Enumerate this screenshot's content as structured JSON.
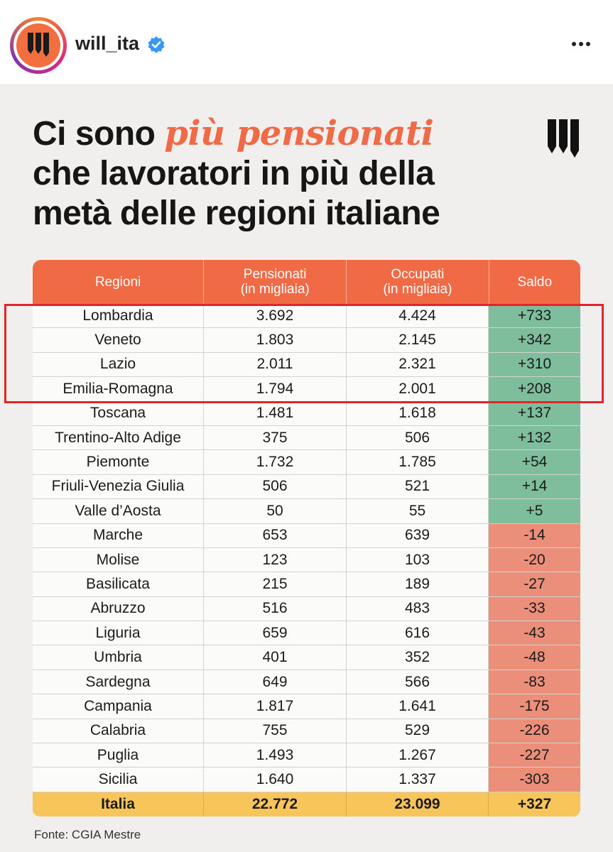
{
  "header": {
    "username": "will_ita",
    "verified_icon": "verified-badge-icon",
    "more_icon": "more-horizontal-icon"
  },
  "title": {
    "part1": "Ci sono ",
    "accent": "più pensionati",
    "part2": "che lavoratori in più della",
    "part3": "metà delle regioni italiane"
  },
  "colors": {
    "accent": "#ef6a45",
    "header_bg": "#f06a45",
    "positive": "#7fbe9c",
    "negative": "#ec8f7a",
    "total_bg": "#f8c55a",
    "highlight_box": "#e3242b"
  },
  "table": {
    "headers": {
      "regioni": "Regioni",
      "pensionati_1": "Pensionati",
      "pensionati_2": "(in migliaia)",
      "occupati_1": "Occupati",
      "occupati_2": "(in migliaia)",
      "saldo": "Saldo"
    },
    "rows": [
      [
        "Lombardia",
        "3.692",
        "4.424",
        "+733"
      ],
      [
        "Veneto",
        "1.803",
        "2.145",
        "+342"
      ],
      [
        "Lazio",
        "2.011",
        "2.321",
        "+310"
      ],
      [
        "Emilia-Romagna",
        "1.794",
        "2.001",
        "+208"
      ],
      [
        "Toscana",
        "1.481",
        "1.618",
        "+137"
      ],
      [
        "Trentino-Alto Adige",
        "375",
        "506",
        "+132"
      ],
      [
        "Piemonte",
        "1.732",
        "1.785",
        "+54"
      ],
      [
        "Friuli-Venezia Giulia",
        "506",
        "521",
        "+14"
      ],
      [
        "Valle d’Aosta",
        "50",
        "55",
        "+5"
      ],
      [
        "Marche",
        "653",
        "639",
        "-14"
      ],
      [
        "Molise",
        "123",
        "103",
        "-20"
      ],
      [
        "Basilicata",
        "215",
        "189",
        "-27"
      ],
      [
        "Abruzzo",
        "516",
        "483",
        "-33"
      ],
      [
        "Liguria",
        "659",
        "616",
        "-43"
      ],
      [
        "Umbria",
        "401",
        "352",
        "-48"
      ],
      [
        "Sardegna",
        "649",
        "566",
        "-83"
      ],
      [
        "Campania",
        "1.817",
        "1.641",
        "-175"
      ],
      [
        "Calabria",
        "755",
        "529",
        "-226"
      ],
      [
        "Puglia",
        "1.493",
        "1.267",
        "-227"
      ],
      [
        "Sicilia",
        "1.640",
        "1.337",
        "-303"
      ]
    ],
    "total": [
      "Italia",
      "22.772",
      "23.099",
      "+327"
    ]
  },
  "source": "Fonte: CGIA Mestre"
}
